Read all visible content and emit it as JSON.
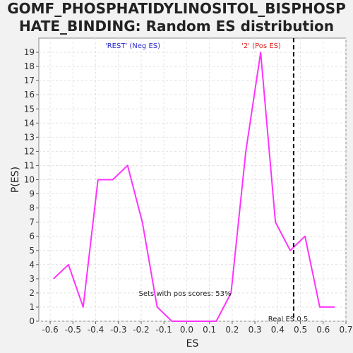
{
  "title": {
    "line1": "GOMF_PHOSPHATIDYLINOSITOL_BISPHOSP",
    "line2": "HATE_BINDING: Random ES distribution"
  },
  "chart_data": {
    "type": "line",
    "xlabel": "ES",
    "ylabel": "P(ES)",
    "xlim": [
      -0.65,
      0.7
    ],
    "ylim": [
      0,
      20
    ],
    "x_ticks": [
      -0.6,
      -0.5,
      -0.4,
      -0.3,
      -0.2,
      -0.1,
      0.0,
      0.1,
      0.2,
      0.3,
      0.4,
      0.5,
      0.6,
      0.7
    ],
    "x_tick_labels": [
      "-0.6",
      "-0.5",
      "-0.4",
      "-0.3",
      "-0.2",
      "-0.1",
      "0.0",
      "0.1",
      "0.2",
      "0.3",
      "0.4",
      "0.5",
      "0.6",
      "0.7"
    ],
    "y_ticks": [
      0,
      1,
      2,
      3,
      4,
      5,
      6,
      7,
      8,
      9,
      10,
      11,
      12,
      13,
      14,
      15,
      16,
      17,
      18,
      19
    ],
    "y_tick_labels": [
      "0",
      "1",
      "2",
      "3",
      "4",
      "5",
      "6",
      "7",
      "8",
      "9",
      "10",
      "11",
      "12",
      "13",
      "14",
      "15",
      "16",
      "17",
      "18",
      "19"
    ],
    "grid": true,
    "series": [
      {
        "color": "#ff33ff",
        "x": [
          -0.585,
          -0.52,
          -0.455,
          -0.39,
          -0.325,
          -0.26,
          -0.195,
          -0.13,
          -0.065,
          0.0,
          0.065,
          0.13,
          0.195,
          0.26,
          0.325,
          0.39,
          0.455,
          0.52,
          0.585,
          0.65
        ],
        "y": [
          3,
          4,
          1,
          10,
          10,
          11,
          7,
          1,
          0,
          0,
          0,
          0,
          2,
          12,
          19,
          7,
          5,
          6,
          1,
          1
        ]
      }
    ],
    "real_es": 0.47,
    "annotations": {
      "neg_label": "'REST' (Neg ES)",
      "neg_color": "#2a2acc",
      "pos_label": "'2' (Pos ES)",
      "pos_color": "#e02020",
      "pos_scores": "Sets with pos scores: 53%",
      "real_es_label": "Real ES 0.5"
    }
  }
}
